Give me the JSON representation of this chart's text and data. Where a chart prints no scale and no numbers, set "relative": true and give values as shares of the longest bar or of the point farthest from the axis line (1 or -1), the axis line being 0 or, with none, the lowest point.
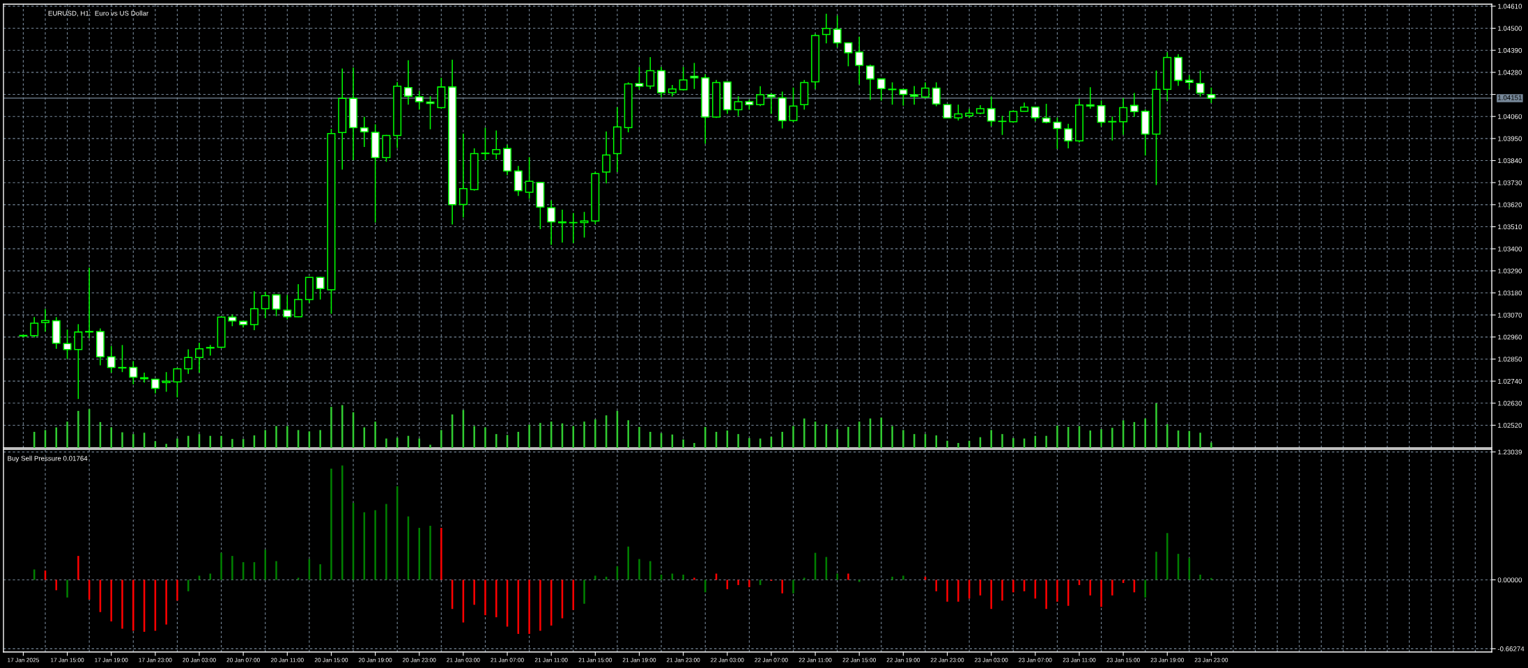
{
  "chart_data": [
    {
      "type": "candlestick",
      "title": "EURUSD, H1:  Euro vs US Dollar",
      "color": "#00ff00",
      "grid": true,
      "tick_labels": "y",
      "ylim": [
        1.02407,
        1.0462
      ],
      "yticks": [
        {
          "value": 1.0252,
          "label": "1.02520"
        },
        {
          "value": 1.0263,
          "label": "1.02630"
        },
        {
          "value": 1.0274,
          "label": "1.02740"
        },
        {
          "value": 1.0285,
          "label": "1.02850"
        },
        {
          "value": 1.0296,
          "label": "1.02960"
        },
        {
          "value": 1.0307,
          "label": "1.03070"
        },
        {
          "value": 1.0318,
          "label": "1.03180"
        },
        {
          "value": 1.0329,
          "label": "1.03290"
        },
        {
          "value": 1.034,
          "label": "1.03400"
        },
        {
          "value": 1.0351,
          "label": "1.03510"
        },
        {
          "value": 1.0362,
          "label": "1.03620"
        },
        {
          "value": 1.0373,
          "label": "1.03730"
        },
        {
          "value": 1.0384,
          "label": "1.03840"
        },
        {
          "value": 1.0395,
          "label": "1.03950"
        },
        {
          "value": 1.0406,
          "label": "1.04060"
        },
        {
          "value": 1.0417,
          "label": null
        },
        {
          "value": 1.0428,
          "label": "1.04280"
        },
        {
          "value": 1.0439,
          "label": "1.04390"
        },
        {
          "value": 1.045,
          "label": "1.04500"
        },
        {
          "value": 1.0461,
          "label": "1.04610"
        }
      ],
      "ref_lines": [
        {
          "axis": "y",
          "value": 1.04151,
          "label": "1.04151",
          "color": "#778899"
        }
      ],
      "categories": [
        null,
        null,
        null,
        null,
        null,
        null,
        null,
        null,
        null,
        null,
        null,
        null,
        null,
        null,
        null,
        null,
        null,
        null,
        null,
        null,
        null,
        null,
        null,
        null,
        null,
        null,
        null,
        null,
        null,
        null,
        null,
        null,
        null,
        null,
        null,
        null,
        null,
        null,
        null,
        null,
        null,
        null,
        null,
        null,
        null,
        null,
        null,
        null,
        null,
        null,
        null,
        null,
        null,
        null,
        null,
        null,
        null,
        null,
        null,
        null,
        null,
        null,
        null,
        null,
        null,
        null,
        null,
        null,
        null,
        null,
        null,
        null,
        null,
        null,
        null,
        null,
        null,
        null,
        null,
        null,
        null,
        null,
        null,
        null,
        null,
        null,
        null,
        null,
        null,
        null,
        null,
        null,
        null,
        null,
        null,
        null,
        null,
        null,
        null,
        null,
        null,
        null,
        null,
        null,
        null,
        null,
        null,
        null,
        null,
        null,
        null,
        null,
        null,
        null,
        null,
        null,
        null,
        null,
        null,
        null,
        null,
        null,
        null,
        null,
        null,
        null,
        null,
        null,
        null,
        null,
        null,
        null,
        null,
        null
      ],
      "ohlc": [
        [
          1.02965,
          1.02972,
          1.02958,
          1.02968
        ],
        [
          1.02967,
          1.03059,
          1.02958,
          1.03029
        ],
        [
          1.03032,
          1.031,
          1.02986,
          1.03042
        ],
        [
          1.03041,
          1.03059,
          1.02901,
          1.02929
        ],
        [
          1.02927,
          1.02997,
          1.02851,
          1.02898
        ],
        [
          1.02898,
          1.03024,
          1.02651,
          1.02985
        ],
        [
          1.02985,
          1.03306,
          1.02953,
          1.02988
        ],
        [
          1.02987,
          1.03003,
          1.02819,
          1.02861
        ],
        [
          1.02861,
          1.02915,
          1.02782,
          1.02808
        ],
        [
          1.02808,
          1.0292,
          1.02785,
          1.02806
        ],
        [
          1.02808,
          1.0284,
          1.02724,
          1.0276
        ],
        [
          1.02757,
          1.02782,
          1.02733,
          1.02752
        ],
        [
          1.02749,
          1.02752,
          1.02679,
          1.02704
        ],
        [
          1.02733,
          1.02785,
          1.02687,
          1.0274
        ],
        [
          1.02736,
          1.02806,
          1.02659,
          1.02801
        ],
        [
          1.02801,
          1.02899,
          1.02776,
          1.02858
        ],
        [
          1.02858,
          1.02932,
          1.02782,
          1.02901
        ],
        [
          1.02905,
          1.0292,
          1.02867,
          1.02908
        ],
        [
          1.02909,
          1.03063,
          1.02904,
          1.03059
        ],
        [
          1.03059,
          1.03072,
          1.03014,
          1.0304
        ],
        [
          1.03038,
          1.0304,
          1.03007,
          1.03022
        ],
        [
          1.03022,
          1.03188,
          1.02994,
          1.03101
        ],
        [
          1.03101,
          1.03186,
          1.03054,
          1.03166
        ],
        [
          1.0317,
          1.03172,
          1.03064,
          1.03099
        ],
        [
          1.03094,
          1.0317,
          1.03048,
          1.03061
        ],
        [
          1.03061,
          1.03223,
          1.03059,
          1.03147
        ],
        [
          1.03147,
          1.0326,
          1.0313,
          1.03257
        ],
        [
          1.03257,
          1.0326,
          1.03147,
          1.03202
        ],
        [
          1.03196,
          1.03998,
          1.03076,
          1.03975
        ],
        [
          1.0398,
          1.04299,
          1.03795,
          1.0415
        ],
        [
          1.0415,
          1.04304,
          1.03842,
          1.04004
        ],
        [
          1.04003,
          1.04058,
          1.03908,
          1.03983
        ],
        [
          1.03981,
          1.04021,
          1.03531,
          1.03855
        ],
        [
          1.03855,
          1.03968,
          1.03834,
          1.03965
        ],
        [
          1.03965,
          1.04232,
          1.03903,
          1.04211
        ],
        [
          1.04204,
          1.0434,
          1.04119,
          1.04161
        ],
        [
          1.04158,
          1.04188,
          1.04094,
          1.04134
        ],
        [
          1.04132,
          1.04161,
          1.03996,
          1.04125
        ],
        [
          1.04104,
          1.04253,
          1.04099,
          1.04207
        ],
        [
          1.04207,
          1.04343,
          1.03521,
          1.0362
        ],
        [
          1.03621,
          1.03975,
          1.03556,
          1.037
        ],
        [
          1.03695,
          1.03901,
          1.0369,
          1.03875
        ],
        [
          1.03875,
          1.04004,
          1.03842,
          1.03877
        ],
        [
          1.03873,
          1.0399,
          1.03846,
          1.03895
        ],
        [
          1.039,
          1.03919,
          1.03767,
          1.03788
        ],
        [
          1.03788,
          1.03813,
          1.03664,
          1.0369
        ],
        [
          1.03682,
          1.03857,
          1.03649,
          1.03737
        ],
        [
          1.03731,
          1.03733,
          1.03498,
          1.03608
        ],
        [
          1.03605,
          1.03641,
          1.0342,
          1.03534
        ],
        [
          1.03534,
          1.03595,
          1.03431,
          1.0353
        ],
        [
          1.0353,
          1.03579,
          1.03428,
          1.03531
        ],
        [
          1.03531,
          1.03584,
          1.03456,
          1.03539
        ],
        [
          1.03539,
          1.03785,
          1.03523,
          1.03775
        ],
        [
          1.03783,
          1.03985,
          1.03726,
          1.03868
        ],
        [
          1.03875,
          1.04106,
          1.03783,
          1.04008
        ],
        [
          1.04004,
          1.0423,
          1.03981,
          1.04222
        ],
        [
          1.04224,
          1.04307,
          1.04194,
          1.04211
        ],
        [
          1.04212,
          1.04356,
          1.04197,
          1.04288
        ],
        [
          1.04288,
          1.04307,
          1.04155,
          1.04179
        ],
        [
          1.04179,
          1.04217,
          1.0416,
          1.04197
        ],
        [
          1.04194,
          1.04307,
          1.04189,
          1.04242
        ],
        [
          1.0426,
          1.04327,
          1.04197,
          1.04253
        ],
        [
          1.04253,
          1.04271,
          1.03924,
          1.04057
        ],
        [
          1.04057,
          1.04242,
          1.04053,
          1.04229
        ],
        [
          1.04232,
          1.04235,
          1.04073,
          1.04094
        ],
        [
          1.04094,
          1.04161,
          1.04062,
          1.04134
        ],
        [
          1.04134,
          1.04145,
          1.04094,
          1.04119
        ],
        [
          1.04119,
          1.04211,
          1.04112,
          1.04168
        ],
        [
          1.04168,
          1.04176,
          1.04073,
          1.04158
        ],
        [
          1.04153,
          1.04184,
          1.04,
          1.04039
        ],
        [
          1.0404,
          1.04204,
          1.04032,
          1.04112
        ],
        [
          1.04119,
          1.04242,
          1.04094,
          1.04229
        ],
        [
          1.04233,
          1.04472,
          1.04197,
          1.04464
        ],
        [
          1.04469,
          1.04572,
          1.04425,
          1.04499
        ],
        [
          1.04495,
          1.04563,
          1.04405,
          1.04427
        ],
        [
          1.04427,
          1.04428,
          1.0431,
          1.04378
        ],
        [
          1.04381,
          1.04458,
          1.04219,
          1.04315
        ],
        [
          1.04312,
          1.04319,
          1.04142,
          1.04247
        ],
        [
          1.04247,
          1.04248,
          1.04139,
          1.04199
        ],
        [
          1.04196,
          1.0423,
          1.04119,
          1.04194
        ],
        [
          1.04194,
          1.04195,
          1.04114,
          1.0417
        ],
        [
          1.04168,
          1.04212,
          1.04119,
          1.04161
        ],
        [
          1.04157,
          1.0423,
          1.0415,
          1.04201
        ],
        [
          1.04201,
          1.0423,
          1.04111,
          1.04122
        ],
        [
          1.04119,
          1.0412,
          1.04052,
          1.04053
        ],
        [
          1.04053,
          1.04119,
          1.0404,
          1.04073
        ],
        [
          1.04063,
          1.04099,
          1.04053,
          1.04076
        ],
        [
          1.04076,
          1.04116,
          1.04071,
          1.04099
        ],
        [
          1.04099,
          1.0416,
          1.04012,
          1.04037
        ],
        [
          1.04036,
          1.04063,
          1.03968,
          1.04035
        ],
        [
          1.04034,
          1.04091,
          1.04029,
          1.04085
        ],
        [
          1.04086,
          1.04129,
          1.04085,
          1.04107
        ],
        [
          1.04107,
          1.04108,
          1.04036,
          1.04054
        ],
        [
          1.04052,
          1.04123,
          1.04026,
          1.04031
        ],
        [
          1.04031,
          1.04055,
          1.03898,
          1.04
        ],
        [
          1.03998,
          1.04023,
          1.03901,
          1.03938
        ],
        [
          1.03938,
          1.04148,
          1.0393,
          1.04117
        ],
        [
          1.04118,
          1.04206,
          1.04099,
          1.04112
        ],
        [
          1.04114,
          1.0414,
          1.0401,
          1.04031
        ],
        [
          1.04033,
          1.0406,
          1.0394,
          1.04035
        ],
        [
          1.04034,
          1.04152,
          1.03969,
          1.04104
        ],
        [
          1.04115,
          1.04177,
          1.04058,
          1.04084
        ],
        [
          1.04086,
          1.04096,
          1.03865,
          1.03972
        ],
        [
          1.03972,
          1.04289,
          1.03718,
          1.04195
        ],
        [
          1.04195,
          1.0438,
          1.04136,
          1.04354
        ],
        [
          1.04354,
          1.04371,
          1.04213,
          1.0424
        ],
        [
          1.0424,
          1.04266,
          1.04196,
          1.0423
        ],
        [
          1.04225,
          1.04289,
          1.04159,
          1.04177
        ],
        [
          1.04169,
          1.04204,
          1.04127,
          1.04151
        ],
        null,
        null,
        null,
        null,
        null,
        null,
        null,
        null,
        null,
        null,
        null,
        null,
        null,
        null,
        null,
        null,
        null,
        null,
        null,
        null,
        null,
        null,
        null,
        null,
        null
      ],
      "colors": [
        "#000000",
        "#000000",
        "#000000",
        "#ffffff",
        "#ffffff",
        "#000000",
        "#000000",
        "#ffffff",
        "#ffffff",
        "#ffffff",
        "#ffffff",
        "#ffffff",
        "#ffffff",
        "#000000",
        "#000000",
        "#000000",
        "#000000",
        "#000000",
        "#000000",
        "#ffffff",
        "#ffffff",
        "#000000",
        "#000000",
        "#ffffff",
        "#ffffff",
        "#000000",
        "#000000",
        "#ffffff",
        "#000000",
        "#000000",
        "#ffffff",
        "#ffffff",
        "#ffffff",
        "#000000",
        "#000000",
        "#ffffff",
        "#ffffff",
        "#ffffff",
        "#000000",
        "#ffffff",
        "#000000",
        "#000000",
        "#000000",
        "#000000",
        "#ffffff",
        "#ffffff",
        "#000000",
        "#ffffff",
        "#ffffff",
        "#ffffff",
        "#000000",
        "#000000",
        "#000000",
        "#000000",
        "#000000",
        "#000000",
        "#ffffff",
        "#000000",
        "#ffffff",
        "#000000",
        "#000000",
        "#ffffff",
        "#ffffff",
        "#000000",
        "#ffffff",
        "#000000",
        "#ffffff",
        "#000000",
        "#ffffff",
        "#ffffff",
        "#000000",
        "#000000",
        "#000000",
        "#000000",
        "#ffffff",
        "#ffffff",
        "#ffffff",
        "#ffffff",
        "#ffffff",
        "#ffffff",
        "#ffffff",
        "#ffffff",
        "#000000",
        "#ffffff",
        "#ffffff",
        "#000000",
        "#000000",
        "#000000",
        "#ffffff",
        "#ffffff",
        "#000000",
        "#000000",
        "#ffffff",
        "#ffffff",
        "#ffffff",
        "#ffffff",
        "#000000",
        "#ffffff",
        "#ffffff",
        "#000000",
        "#000000",
        "#ffffff",
        "#ffffff",
        "#000000",
        "#000000",
        "#ffffff",
        "#ffffff",
        "#ffffff",
        "#ffffff",
        null,
        null,
        null,
        null,
        null,
        null,
        null,
        null,
        null,
        null,
        null,
        null,
        null,
        null,
        null,
        null,
        null,
        null,
        null,
        null,
        null,
        null,
        null,
        null,
        null
      ]
    },
    {
      "type": "bar",
      "relative": true,
      "tick_labels": false,
      "color": "#32cd32",
      "categories": [
        null,
        null,
        null,
        null,
        null,
        null,
        null,
        null,
        null,
        null,
        null,
        null,
        null,
        null,
        null,
        null,
        null,
        null,
        null,
        null,
        null,
        null,
        null,
        null,
        null,
        null,
        null,
        null,
        null,
        null,
        null,
        null,
        null,
        null,
        null,
        null,
        null,
        null,
        null,
        null,
        null,
        null,
        null,
        null,
        null,
        null,
        null,
        null,
        null,
        null,
        null,
        null,
        null,
        null,
        null,
        null,
        null,
        null,
        null,
        null,
        null,
        null,
        null,
        null,
        null,
        null,
        null,
        null,
        null,
        null,
        null,
        null,
        null,
        null,
        null,
        null,
        null,
        null,
        null,
        null,
        null,
        null,
        null,
        null,
        null,
        null,
        null,
        null,
        null,
        null,
        null,
        null,
        null,
        null,
        null,
        null,
        null,
        null,
        null,
        null,
        null,
        null,
        null,
        null,
        null,
        null,
        null,
        null,
        null,
        null,
        null,
        null,
        null,
        null,
        null,
        null,
        null,
        null,
        null,
        null,
        null,
        null,
        null,
        null,
        null,
        null,
        null,
        null,
        null,
        null,
        null,
        null,
        null,
        null
      ],
      "values": [
        null,
        0.36,
        0.4,
        0.46,
        0.59,
        0.83,
        0.87,
        0.58,
        0.46,
        0.35,
        0.31,
        0.34,
        0.15,
        0.09,
        0.21,
        0.27,
        0.31,
        0.27,
        0.27,
        0.2,
        0.2,
        0.28,
        0.4,
        0.49,
        0.49,
        0.4,
        0.37,
        0.4,
        0.92,
        0.96,
        0.8,
        0.46,
        0.59,
        0.21,
        0.23,
        0.27,
        0.21,
        0.07,
        0.4,
        0.75,
        0.85,
        0.49,
        0.46,
        0.31,
        0.29,
        0.36,
        0.52,
        0.56,
        0.59,
        0.55,
        0.49,
        0.59,
        0.64,
        0.73,
        0.83,
        0.62,
        0.47,
        0.36,
        0.33,
        0.3,
        0.19,
        0.11,
        0.47,
        0.36,
        0.39,
        0.31,
        0.22,
        0.21,
        0.25,
        0.36,
        0.49,
        0.66,
        0.59,
        0.53,
        0.42,
        0.47,
        0.59,
        0.66,
        0.68,
        0.49,
        0.4,
        0.31,
        0.31,
        0.28,
        0.16,
        0.11,
        0.16,
        0.24,
        0.4,
        0.31,
        0.22,
        0.21,
        0.27,
        0.27,
        0.5,
        0.47,
        0.49,
        0.39,
        0.42,
        0.45,
        0.62,
        0.58,
        0.66,
        1,
        0.53,
        0.39,
        0.38,
        0.34,
        0.12,
        null,
        null,
        null,
        null,
        null,
        null,
        null,
        null,
        null,
        null,
        null,
        null,
        null,
        null,
        null,
        null,
        null,
        null,
        null,
        null,
        null,
        null,
        null,
        null,
        null
      ]
    },
    {
      "type": "bar",
      "title": "Buy Sell Pressure 0.01764",
      "grid": true,
      "ylim": [
        -0.694,
        1.256
      ],
      "yticks": [
        -0.66274,
        {
          "value": 0,
          "label": "0.00000"
        },
        1.23039
      ],
      "categories": [
        "17 Jan 2025",
        null,
        null,
        null,
        "17 Jan 15:00",
        null,
        null,
        null,
        "17 Jan 19:00",
        null,
        null,
        null,
        "17 Jan 23:00",
        null,
        null,
        null,
        "20 Jan 03:00",
        null,
        null,
        null,
        "20 Jan 07:00",
        null,
        null,
        null,
        "20 Jan 11:00",
        null,
        null,
        null,
        "20 Jan 15:00",
        null,
        null,
        null,
        "20 Jan 19:00",
        null,
        null,
        null,
        "20 Jan 23:00",
        null,
        null,
        null,
        "21 Jan 03:00",
        null,
        null,
        null,
        "21 Jan 07:00",
        null,
        null,
        null,
        "21 Jan 11:00",
        null,
        null,
        null,
        "21 Jan 15:00",
        null,
        null,
        null,
        "21 Jan 19:00",
        null,
        null,
        null,
        "21 Jan 23:00",
        null,
        null,
        null,
        "22 Jan 03:00",
        null,
        null,
        null,
        "22 Jan 07:00",
        null,
        null,
        null,
        "22 Jan 11:00",
        null,
        null,
        null,
        "22 Jan 15:00",
        null,
        null,
        null,
        "22 Jan 19:00",
        null,
        null,
        null,
        "22 Jan 23:00",
        null,
        null,
        null,
        "23 Jan 03:00",
        null,
        null,
        null,
        "23 Jan 07:00",
        null,
        null,
        null,
        "23 Jan 11:00",
        null,
        null,
        null,
        "23 Jan 15:00",
        null,
        null,
        null,
        "23 Jan 19:00",
        null,
        null,
        null,
        "23 Jan 23:00",
        null,
        null,
        null,
        null,
        null,
        null,
        null,
        null,
        null,
        null,
        null,
        null,
        null,
        null,
        null,
        null,
        null,
        null,
        null,
        null,
        null,
        null,
        null,
        null,
        null
      ],
      "values": [
        null,
        0.1,
        0.09,
        -0.1,
        -0.17,
        0.23,
        -0.19,
        -0.31,
        -0.4,
        -0.47,
        -0.49,
        -0.5,
        -0.49,
        -0.43,
        -0.2,
        -0.11,
        0.04,
        0.06,
        0.26,
        0.23,
        0.17,
        0.17,
        0.29,
        0.18,
        null,
        0.02,
        0.2,
        0.15,
        1.07,
        1.1,
        0.74,
        0.65,
        0.67,
        0.73,
        0.9,
        0.61,
        0.5,
        0.52,
        0.5,
        -0.28,
        -0.41,
        -0.24,
        -0.34,
        -0.36,
        -0.45,
        -0.52,
        -0.52,
        -0.49,
        -0.44,
        -0.37,
        -0.29,
        -0.23,
        0.04,
        0.03,
        0.13,
        0.32,
        0.2,
        0.18,
        0.05,
        0.06,
        0.05,
        0.02,
        -0.12,
        0.06,
        -0.09,
        -0.05,
        -0.07,
        -0.05,
        -0.01,
        -0.13,
        -0.13,
        0.02,
        0.26,
        0.22,
        0.06,
        0.06,
        -0.02,
        null,
        null,
        0.03,
        0.04,
        null,
        0.03,
        -0.11,
        -0.21,
        -0.21,
        -0.18,
        -0.15,
        -0.28,
        -0.2,
        -0.12,
        -0.11,
        -0.18,
        -0.28,
        -0.21,
        -0.25,
        -0.05,
        -0.15,
        -0.26,
        -0.15,
        -0.03,
        -0.12,
        -0.17,
        0.27,
        0.45,
        0.25,
        0.21,
        0.05,
        0.01764,
        null,
        null,
        null,
        null,
        null,
        null,
        null,
        null,
        null,
        null,
        null,
        null,
        null,
        null,
        null,
        null,
        null,
        null,
        null,
        null,
        null,
        null,
        null,
        null,
        null
      ],
      "colors": [
        "#008000",
        "#008000",
        "#ff0000",
        "#ff0000",
        "#008000",
        "#ff0000",
        "#ff0000",
        "#ff0000",
        "#ff0000",
        "#ff0000",
        "#ff0000",
        "#ff0000",
        "#ff0000",
        "#ff0000",
        "#ff0000",
        "#008000",
        "#008000",
        "#008000",
        "#008000",
        "#008000",
        "#008000",
        "#008000",
        "#008000",
        "#008000",
        "#008000",
        "#008000",
        "#008000",
        "#008000",
        "#008000",
        "#008000",
        "#008000",
        "#008000",
        "#008000",
        "#008000",
        "#008000",
        "#008000",
        "#008000",
        "#008000",
        "#ff0000",
        "#ff0000",
        "#ff0000",
        "#ff0000",
        "#ff0000",
        "#ff0000",
        "#ff0000",
        "#ff0000",
        "#ff0000",
        "#ff0000",
        "#ff0000",
        "#ff0000",
        "#ff0000",
        "#008000",
        "#008000",
        "#008000",
        "#008000",
        "#008000",
        "#008000",
        "#008000",
        "#008000",
        "#008000",
        "#008000",
        "#ff0000",
        "#008000",
        "#ff0000",
        "#ff0000",
        "#ff0000",
        "#ff0000",
        "#008000",
        "#ff0000",
        "#ff0000",
        "#008000",
        "#008000",
        "#008000",
        "#008000",
        "#008000",
        "#ff0000",
        "#008000",
        "#008000",
        "#008000",
        "#008000",
        "#008000",
        "#008000",
        "#ff0000",
        "#ff0000",
        "#ff0000",
        "#ff0000",
        "#ff0000",
        "#ff0000",
        "#ff0000",
        "#ff0000",
        "#ff0000",
        "#ff0000",
        "#ff0000",
        "#ff0000",
        "#ff0000",
        "#ff0000",
        "#ff0000",
        "#ff0000",
        "#ff0000",
        "#ff0000",
        "#ff0000",
        "#ff0000",
        "#008000",
        "#008000",
        "#008000",
        "#008000",
        "#008000",
        "#008000",
        "#008000",
        null,
        null,
        null,
        null,
        null,
        null,
        null,
        null,
        null,
        null,
        null,
        null,
        null,
        null,
        null,
        null,
        null,
        null,
        null,
        null,
        null,
        null,
        null,
        null,
        null
      ]
    }
  ]
}
